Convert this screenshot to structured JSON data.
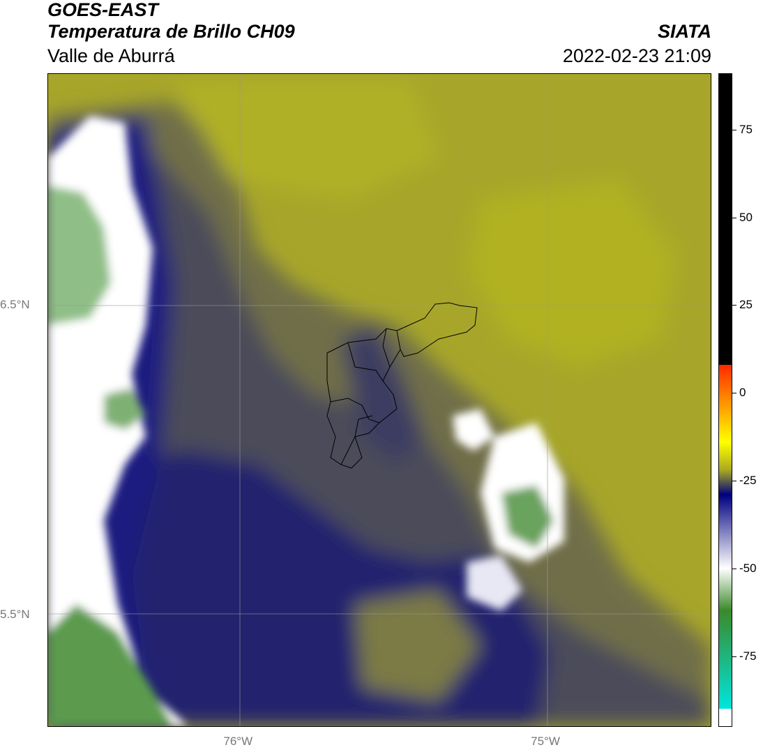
{
  "header": {
    "satellite": "GOES-EAST",
    "product": "Temperatura de Brillo CH09",
    "region": "Valle de Aburrá",
    "agency": "SIATA",
    "timestamp": "2022-02-23 21:09"
  },
  "map": {
    "lat_labels": [
      {
        "text": "6.5°N",
        "value": 6.5
      },
      {
        "text": "5.5°N",
        "value": 5.5
      }
    ],
    "lon_labels": [
      {
        "text": "76°W",
        "value": -76.0
      },
      {
        "text": "75°W",
        "value": -75.0
      }
    ],
    "extent": {
      "lon_min": -76.62,
      "lon_max": -74.46,
      "lat_min": 5.14,
      "lat_max": 7.25
    }
  },
  "colorbar": {
    "ticks": [
      75,
      50,
      25,
      0,
      -25,
      -50,
      -75
    ],
    "range": [
      -95,
      91
    ],
    "colors": {
      "black": "#000000",
      "red": "#ff2a00",
      "orange": "#ff8c00",
      "yellow": "#ffff00",
      "olive": "#a8a822",
      "navy": "#000080",
      "white": "#ffffff",
      "green": "#3a8a2a",
      "cyan": "#00e5dd"
    }
  }
}
